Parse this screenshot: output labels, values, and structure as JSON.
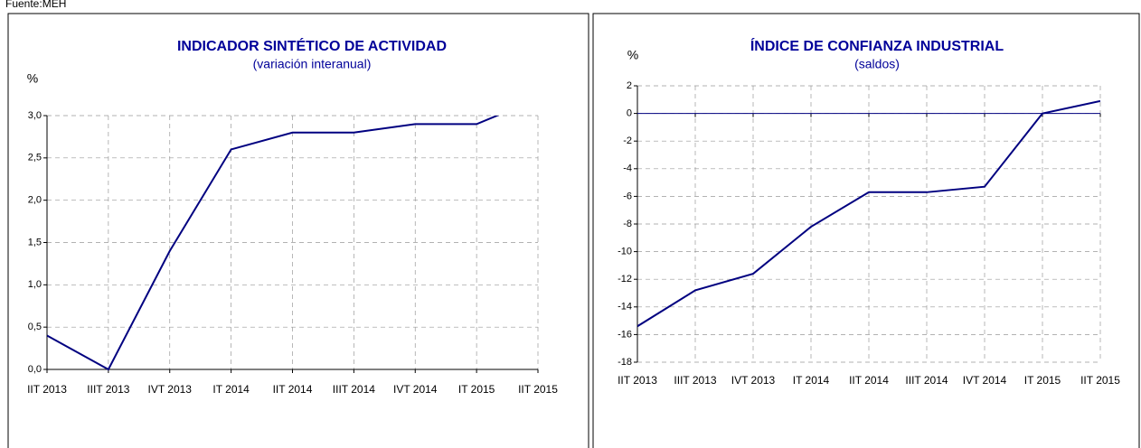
{
  "source": "Fuente:MEH",
  "chart_data": [
    {
      "type": "line",
      "title": "INDICADOR SINTÉTICO DE ACTIVIDAD",
      "subtitle": "(variación interanual)",
      "y_label": "%",
      "categories": [
        "IIT 2013",
        "IIIT 2013",
        "IVT 2013",
        "IT 2014",
        "IIT 2014",
        "IIIT 2014",
        "IVT 2014",
        "IT 2015",
        "IIT 2015"
      ],
      "values": [
        0.4,
        0.0,
        1.4,
        2.6,
        2.8,
        2.8,
        2.9,
        2.9,
        3.2
      ],
      "color": "#000080",
      "ylim": [
        0,
        3
      ],
      "yticks": [
        {
          "value": 0,
          "label": "0,0"
        },
        {
          "value": 0.5,
          "label": "0,5"
        },
        {
          "value": 1,
          "label": "1,0"
        },
        {
          "value": 1.5,
          "label": "1,5"
        },
        {
          "value": 2,
          "label": "2,0"
        },
        {
          "value": 2.5,
          "label": "2,5"
        },
        {
          "value": 3,
          "label": "3,0"
        }
      ],
      "grid": true
    },
    {
      "type": "line",
      "title": "ÍNDICE DE CONFIANZA INDUSTRIAL",
      "subtitle": "(saldos)",
      "y_label": "%",
      "categories": [
        "IIT 2013",
        "IIIT 2013",
        "IVT 2013",
        "IT 2014",
        "IIT 2014",
        "IIIT 2014",
        "IVT 2014",
        "IT 2015",
        "IIT 2015"
      ],
      "values": [
        -15.4,
        -12.8,
        -11.6,
        -8.2,
        -5.7,
        -5.7,
        -5.3,
        0.0,
        0.9
      ],
      "color": "#000080",
      "ylim": [
        -18,
        2
      ],
      "yticks": [
        -18,
        -16,
        -14,
        -12,
        -10,
        -8,
        -6,
        -4,
        -2,
        0,
        2
      ],
      "grid": true
    }
  ]
}
